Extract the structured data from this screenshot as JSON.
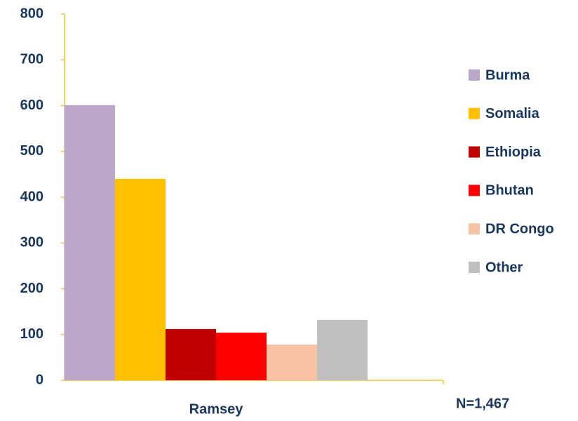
{
  "chart_data": {
    "type": "bar",
    "categories": [
      "Ramsey"
    ],
    "series": [
      {
        "name": "Burma",
        "color": "#bca7c9",
        "values": [
          601
        ]
      },
      {
        "name": "Somalia",
        "color": "#ffc000",
        "values": [
          440
        ]
      },
      {
        "name": "Ethiopia",
        "color": "#c00000",
        "values": [
          112
        ]
      },
      {
        "name": "Bhutan",
        "color": "#ff0000",
        "values": [
          104
        ]
      },
      {
        "name": "DR Congo",
        "color": "#f8c3a4",
        "values": [
          78
        ]
      },
      {
        "name": "Other",
        "color": "#bfbfbf",
        "values": [
          132
        ]
      }
    ],
    "annotation": "N=1,467",
    "ylim": [
      0,
      800
    ],
    "yticks": [
      0,
      100,
      200,
      300,
      400,
      500,
      600,
      700,
      800
    ],
    "grid": false,
    "legend": "right",
    "axis_color": "#f2c12e",
    "text_color": "#17375e"
  }
}
